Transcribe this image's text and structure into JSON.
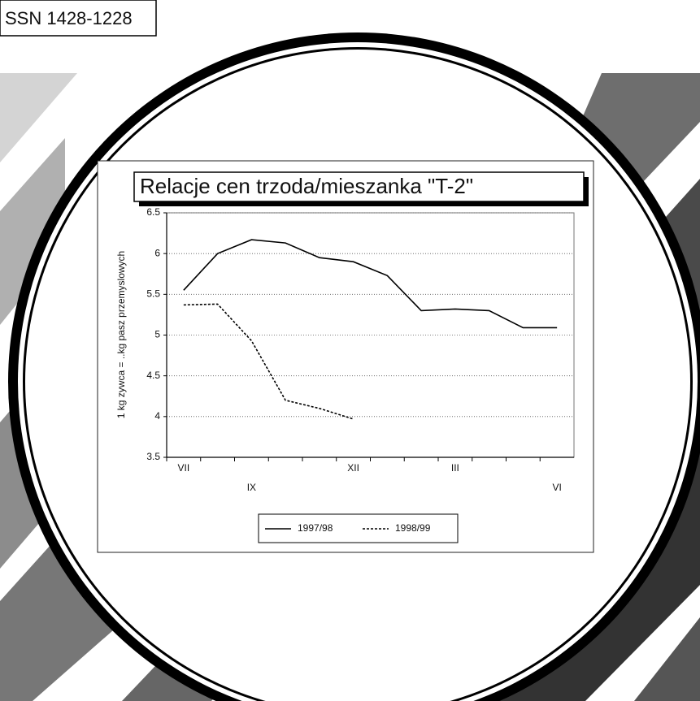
{
  "issn": "SSN 1428-1228",
  "chart_data": {
    "type": "line",
    "title": "Relacje cen trzoda/mieszanka \"T-2\"",
    "y_label": "1 kg zywca = ..kg pasz przemyslowych",
    "categories": [
      "VII",
      null,
      "IX",
      null,
      null,
      "XII",
      null,
      null,
      "III",
      null,
      null,
      "VI"
    ],
    "series": [
      {
        "name": "1997/98",
        "color": "#000000",
        "linestyle": "solid",
        "values": [
          5.55,
          6.0,
          6.17,
          6.13,
          5.95,
          5.9,
          5.73,
          5.3,
          5.32,
          5.3,
          5.09,
          5.09
        ]
      },
      {
        "name": "1998/99",
        "color": "#000000",
        "linestyle": "dotted",
        "values": [
          5.37,
          5.38,
          4.93,
          4.2,
          4.1,
          3.97,
          null,
          null,
          null,
          null,
          null,
          null
        ]
      }
    ],
    "ylim": [
      3.5,
      6.5
    ],
    "yticks": [
      3.5,
      4,
      4.5,
      5,
      5.5,
      6,
      6.5
    ],
    "grid": true,
    "legend": "bottom"
  }
}
